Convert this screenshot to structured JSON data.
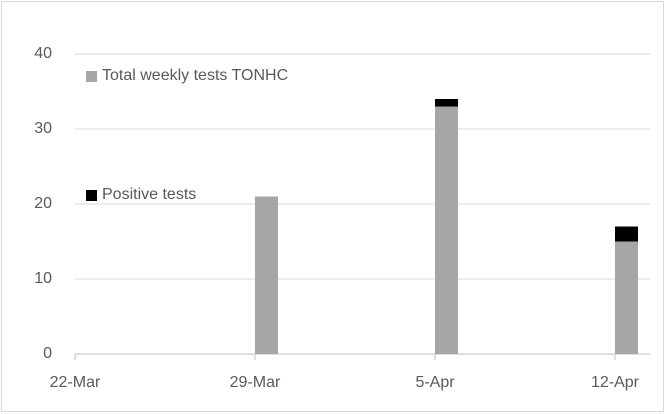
{
  "chart_data": {
    "type": "stacked_bar",
    "categories": [
      "22-Mar",
      "29-Mar",
      "5-Apr",
      "12-Apr"
    ],
    "series": [
      {
        "name": "Total weekly tests TONHC",
        "color": "#a6a6a6",
        "values": [
          0,
          21,
          33,
          15
        ]
      },
      {
        "name": "Positive tests",
        "color": "#000000",
        "values": [
          0,
          0,
          1,
          2
        ]
      }
    ],
    "ylim": [
      0,
      40
    ],
    "yticks": [
      0,
      10,
      20,
      30,
      40
    ],
    "grid": true
  }
}
